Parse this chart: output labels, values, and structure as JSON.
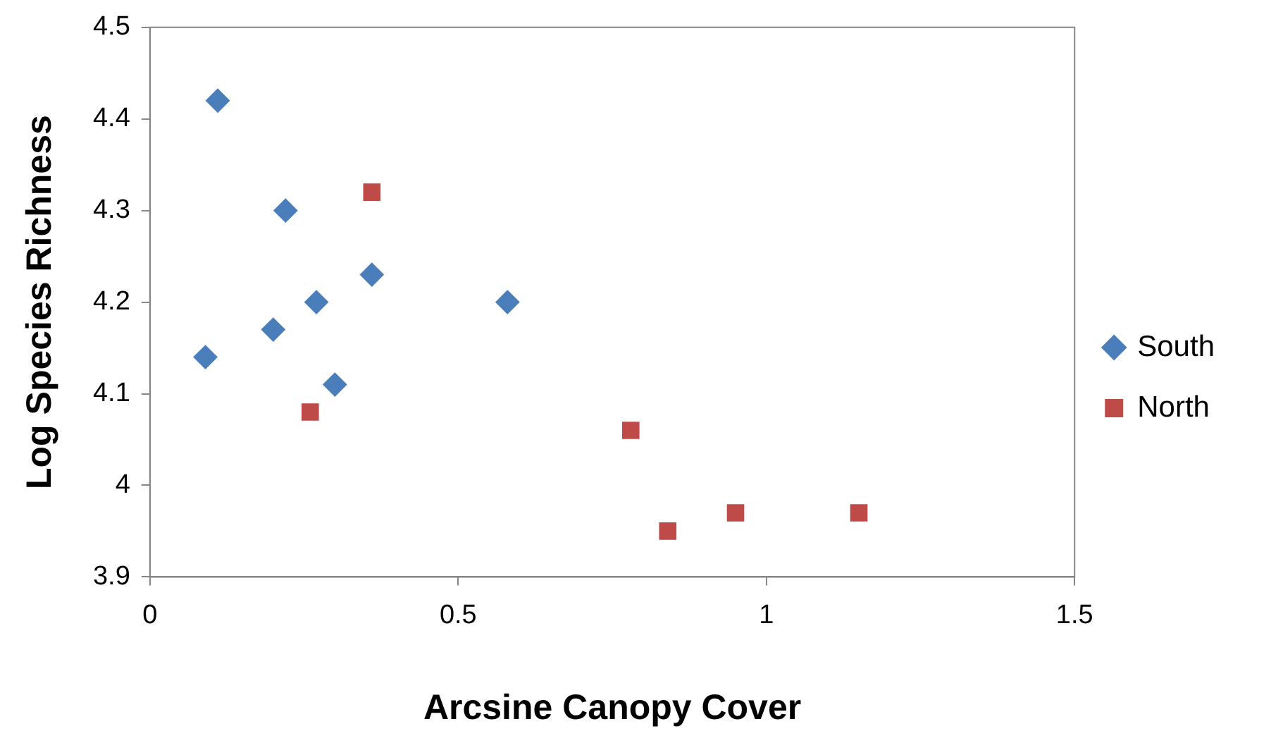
{
  "chart_data": {
    "type": "scatter",
    "xlabel": "Arcsine Canopy Cover",
    "ylabel": "Log Species Richness",
    "xlim": [
      0,
      1.5
    ],
    "xticks": [
      0,
      0.5,
      1,
      1.5
    ],
    "ylim": [
      3.9,
      4.5
    ],
    "yticks": [
      3.9,
      4,
      4.1,
      4.2,
      4.3,
      4.4,
      4.5
    ],
    "grid": false,
    "legend": "right",
    "series": [
      {
        "name": "South",
        "color": "#4a7ebb",
        "marker": "diamond",
        "x": [
          0.11,
          0.22,
          0.36,
          0.27,
          0.2,
          0.09,
          0.3,
          0.58
        ],
        "values": [
          4.42,
          4.3,
          4.23,
          4.2,
          4.17,
          4.14,
          4.11,
          4.2
        ]
      },
      {
        "name": "North",
        "color": "#be4b48",
        "marker": "square",
        "x": [
          0.36,
          0.26,
          0.78,
          0.84,
          0.95,
          1.15
        ],
        "values": [
          4.32,
          4.08,
          4.06,
          3.95,
          3.97,
          3.97
        ]
      }
    ]
  }
}
